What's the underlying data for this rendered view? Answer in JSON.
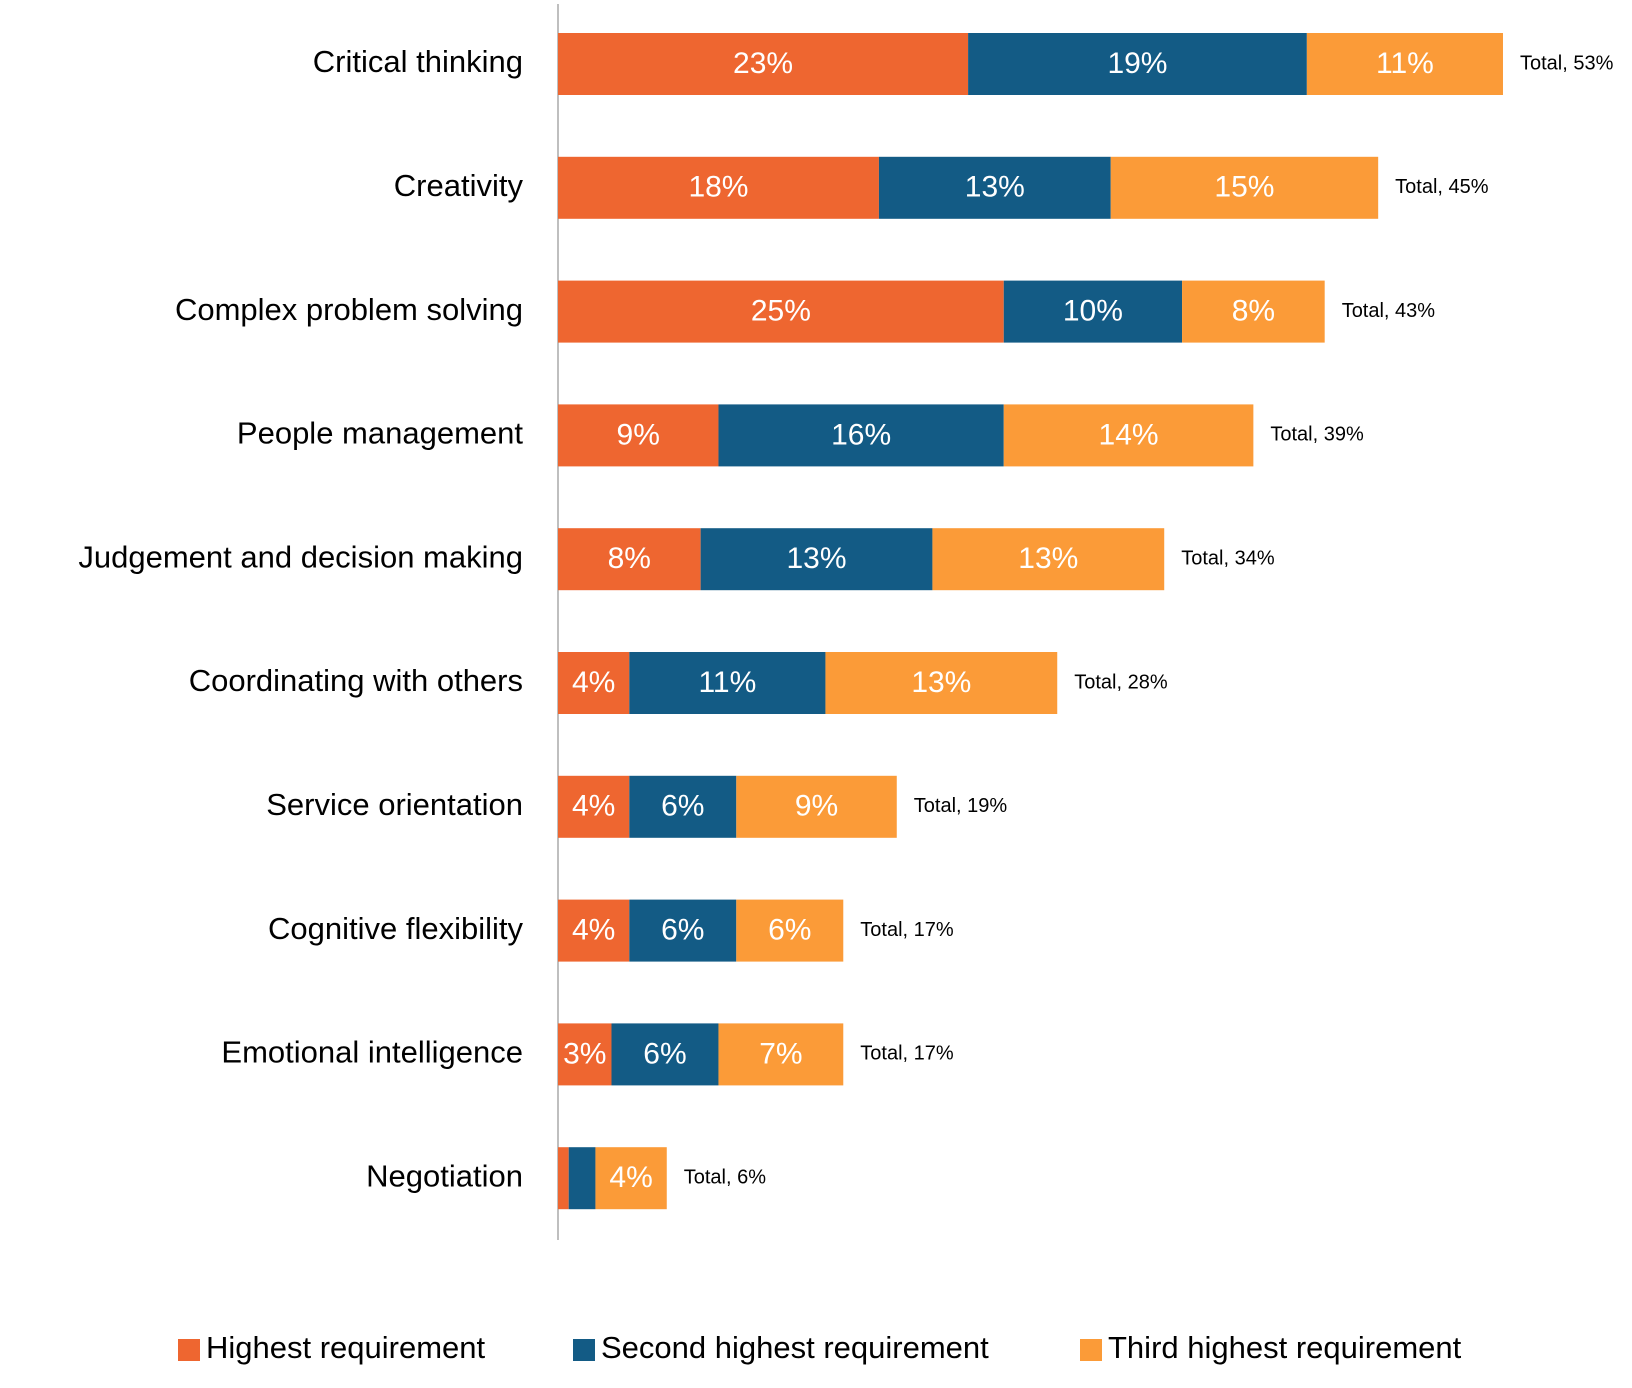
{
  "chart_data": {
    "type": "bar",
    "orientation": "horizontal",
    "stacked": true,
    "title": "",
    "xlabel": "",
    "ylabel": "",
    "xlim": [
      0,
      53
    ],
    "grid": false,
    "legend_position": "bottom",
    "categories": [
      "Critical thinking",
      "Creativity",
      "Complex problem solving",
      "People management",
      "Judgement and decision making",
      "Coordinating with others",
      "Service orientation",
      "Cognitive flexibility",
      "Emotional intelligence",
      "Negotiation"
    ],
    "series": [
      {
        "name": "Highest requirement",
        "color": "#EE6630",
        "values": [
          23,
          18,
          25,
          9,
          8,
          4,
          4,
          4,
          3,
          0.6
        ],
        "labels": [
          "23%",
          "18%",
          "25%",
          "9%",
          "8%",
          "4%",
          "4%",
          "4%",
          "3%",
          ""
        ]
      },
      {
        "name": "Second highest requirement",
        "color": "#135B85",
        "values": [
          19,
          13,
          10,
          16,
          13,
          11,
          6,
          6,
          6,
          1.5
        ],
        "labels": [
          "19%",
          "13%",
          "10%",
          "16%",
          "13%",
          "11%",
          "6%",
          "6%",
          "6%",
          ""
        ]
      },
      {
        "name": "Third highest requirement",
        "color": "#FB9B38",
        "values": [
          11,
          15,
          8,
          14,
          13,
          13,
          9,
          6,
          7,
          4
        ],
        "labels": [
          "11%",
          "15%",
          "8%",
          "14%",
          "13%",
          "13%",
          "9%",
          "6%",
          "7%",
          "4%"
        ]
      }
    ],
    "totals": [
      53,
      45,
      43,
      39,
      34,
      28,
      19,
      17,
      17,
      6
    ],
    "total_labels": [
      "Total, 53%",
      "Total, 45%",
      "Total, 43%",
      "Total, 39%",
      "Total, 34%",
      "Total, 28%",
      "Total, 19%",
      "Total, 17%",
      "Total, 17%",
      "Total, 6%"
    ]
  }
}
